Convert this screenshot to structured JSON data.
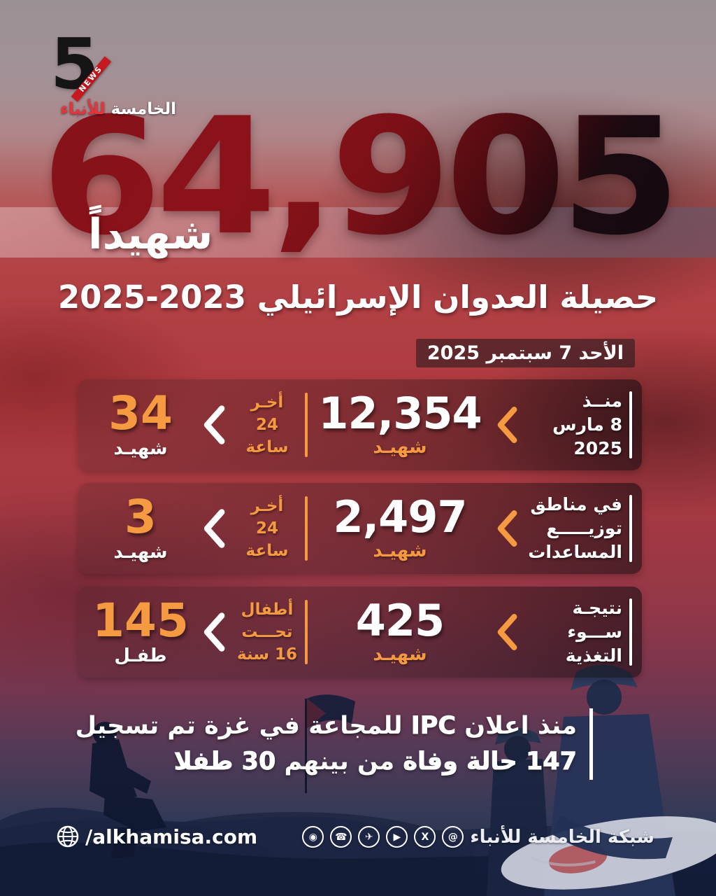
{
  "logo": {
    "five": "5",
    "ribbon": "NEWS",
    "name_main": "الخامسة",
    "name_accent": "للأنباء"
  },
  "headline": {
    "big_number": "64,905",
    "martyr_word": "شهيداً",
    "title": "حصيلة العدوان الإسرائيلي 2023‏-‏2025",
    "date": "الأحد 7 سبتمبر 2025"
  },
  "stats": [
    {
      "label1": "منــذ",
      "label2": "8 مارس",
      "label3": "2025",
      "value": "12,354",
      "value_unit": "شهيـد",
      "mid1": "أخـر",
      "mid2": "24",
      "mid3": "ساعة",
      "recent": "34",
      "recent_unit": "شهيـد"
    },
    {
      "label1": "في مناطق",
      "label2": "توزيـــــع",
      "label3": "المساعدات",
      "value": "2,497",
      "value_unit": "شهيـد",
      "mid1": "أخـر",
      "mid2": "24",
      "mid3": "ساعة",
      "recent": "3",
      "recent_unit": "شهيـد"
    },
    {
      "label1": "نتيجـة",
      "label2": "ســـوء",
      "label3": "التغذية",
      "value": "425",
      "value_unit": "شهيـد",
      "mid1": "أطفال",
      "mid2": "تحـــت",
      "mid3": "16 سنة",
      "recent": "145",
      "recent_unit": "طفـل"
    }
  ],
  "note": {
    "line1_a": "منذ اعلان",
    "line1_b": "IPC",
    "line1_c": "للمجاعة في غزة تم تسجيل",
    "line2_a": "147 حالة وفاة",
    "line2_b": "من بينهم",
    "line2_c": "30 طفلا"
  },
  "footer": {
    "website": "/alkhamisa.com",
    "network_name": "شبكة الخامسة للأنباء",
    "icons": [
      {
        "name": "instagram-icon",
        "glyph": "◉"
      },
      {
        "name": "whatsapp-icon",
        "glyph": "☎"
      },
      {
        "name": "telegram-icon",
        "glyph": "✈"
      },
      {
        "name": "youtube-icon",
        "glyph": "▶"
      },
      {
        "name": "x-icon",
        "glyph": "X"
      },
      {
        "name": "threads-icon",
        "glyph": "@"
      }
    ]
  },
  "colors": {
    "accent_orange": "#F59A40",
    "deep_red": "#7D0E14",
    "mid_red": "#B23A3E",
    "navy": "#233048",
    "logo_red": "#C8191F",
    "white": "#FFFFFF"
  }
}
